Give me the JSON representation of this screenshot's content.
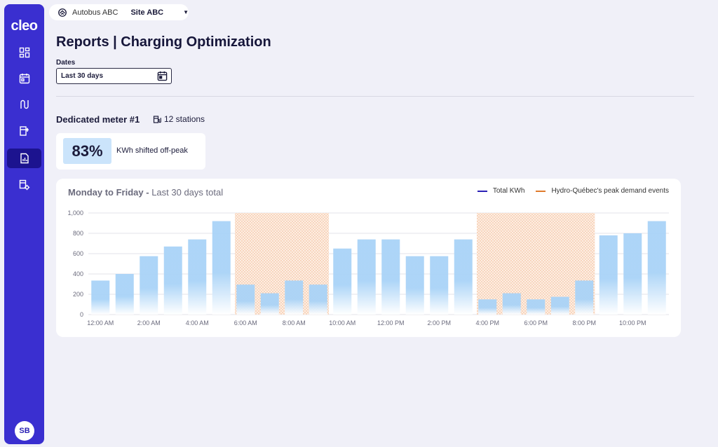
{
  "app": {
    "logo": "cleo"
  },
  "sidebar": {
    "items": [
      {
        "name": "dashboard-icon"
      },
      {
        "name": "calendar-icon"
      },
      {
        "name": "routes-icon"
      },
      {
        "name": "charging-station-icon"
      },
      {
        "name": "reports-icon"
      },
      {
        "name": "settings-icon"
      }
    ],
    "avatar": "SB"
  },
  "site_selector": {
    "org": "Autobus ABC",
    "site": "Site ABC"
  },
  "page": {
    "title": "Reports | Charging Optimization"
  },
  "filters": {
    "dates_label": "Dates",
    "dates_value": "Last 30 days"
  },
  "meter": {
    "title": "Dedicated meter #1",
    "stations": "12 stations"
  },
  "kpi": {
    "value": "83%",
    "label": "KWh shifted off-peak"
  },
  "chart_card": {
    "title_bold": "Monday to Friday -",
    "title_rest": "Last 30 days total",
    "legend": [
      {
        "label": "Total KWh",
        "color": "#2a20b5"
      },
      {
        "label": "Hydro-Québec's peak demand events",
        "color": "#e07b2c"
      }
    ]
  },
  "colors": {
    "sidebar": "#3a2fd0",
    "bar": "#a9d3f7",
    "peak_fill": "#f3b98e"
  },
  "chart_data": {
    "type": "bar",
    "categories": [
      "12:00 AM",
      "1:00 AM",
      "2:00 AM",
      "3:00 AM",
      "4:00 AM",
      "5:00 AM",
      "6:00 AM",
      "7:00 AM",
      "8:00 AM",
      "9:00 AM",
      "10:00 AM",
      "11:00 AM",
      "12:00 PM",
      "1:00 PM",
      "2:00 PM",
      "3:00 PM",
      "4:00 PM",
      "5:00 PM",
      "6:00 PM",
      "7:00 PM",
      "8:00 PM",
      "9:00 PM",
      "10:00 PM",
      "11:00 PM"
    ],
    "x_tick_labels": [
      "12:00 AM",
      "2:00 AM",
      "4:00 AM",
      "6:00 AM",
      "8:00 AM",
      "10:00 AM",
      "12:00 PM",
      "2:00 PM",
      "4:00 PM",
      "6:00 PM",
      "8:00 PM",
      "10:00 PM"
    ],
    "series": [
      {
        "name": "Total KWh",
        "values": [
          335,
          400,
          575,
          670,
          740,
          920,
          295,
          210,
          335,
          295,
          650,
          740,
          740,
          575,
          575,
          740,
          150,
          210,
          150,
          175,
          335,
          780,
          800,
          920
        ]
      }
    ],
    "peak_periods": [
      {
        "start": "6:00 AM",
        "end": "9:00 AM"
      },
      {
        "start": "4:00 PM",
        "end": "8:00 PM"
      }
    ],
    "y_ticks": [
      "1,000",
      "800",
      "600",
      "400",
      "200",
      "0"
    ],
    "ylim": [
      0,
      1000
    ],
    "grid": true,
    "legend_position": "top-right"
  }
}
